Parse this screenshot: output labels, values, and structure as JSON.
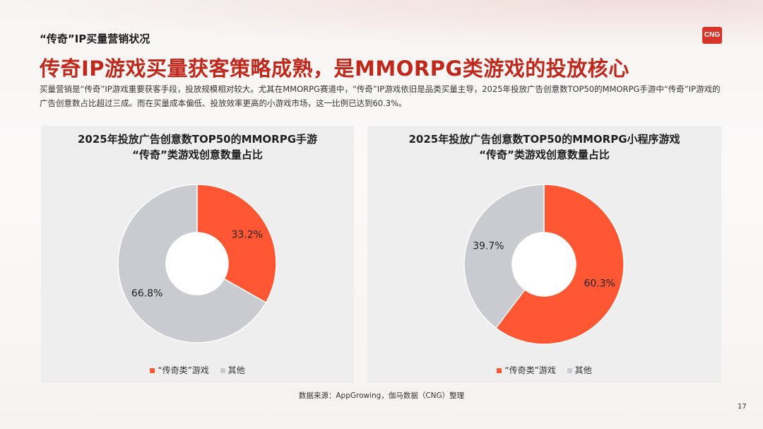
{
  "header": {
    "section_title": "“传奇”IP买量营销状况",
    "logo_text": "CNG",
    "headline": "传奇IP游戏买量获客策略成熟，是MMORPG类游戏的投放核心",
    "intro": "买量营销是“传奇”IP游戏重要获客手段，投放规模相对较大。尤其在MMORPG赛道中，“传奇”IP游戏依旧是品类买量主导，2025年投放广告创意数TOP50的MMORPG手游中“传奇”IP游戏的广告创意数占比超过三成。而在买量成本偏低、投放效率更高的小游戏市场，这一比例已达到60.3%。"
  },
  "colors": {
    "highlight": "#ff5733",
    "other": "#c9cbd0",
    "headline": "#c0281c"
  },
  "chart_data": [
    {
      "type": "pie",
      "title": "2025年投放广告创意数TOP50的MMORPG手游",
      "subtitle": "“传奇”类游戏创意数量占比",
      "categories": [
        "“传奇类”游戏",
        "其他"
      ],
      "values": [
        33.2,
        66.8
      ],
      "value_labels": [
        "33.2%",
        "66.8%"
      ],
      "legend": "bottom"
    },
    {
      "type": "pie",
      "title": "2025年投放广告创意数TOP50的MMORPG小程序游戏",
      "subtitle": "“传奇”类游戏创意数量占比",
      "categories": [
        "“传奇类”游戏",
        "其他"
      ],
      "values": [
        60.3,
        39.7
      ],
      "value_labels": [
        "60.3%",
        "39.7%"
      ],
      "legend": "bottom"
    }
  ],
  "footer": {
    "source": "数据来源：AppGrowing，伽马数据（CNG）整理",
    "page_number": "17"
  }
}
